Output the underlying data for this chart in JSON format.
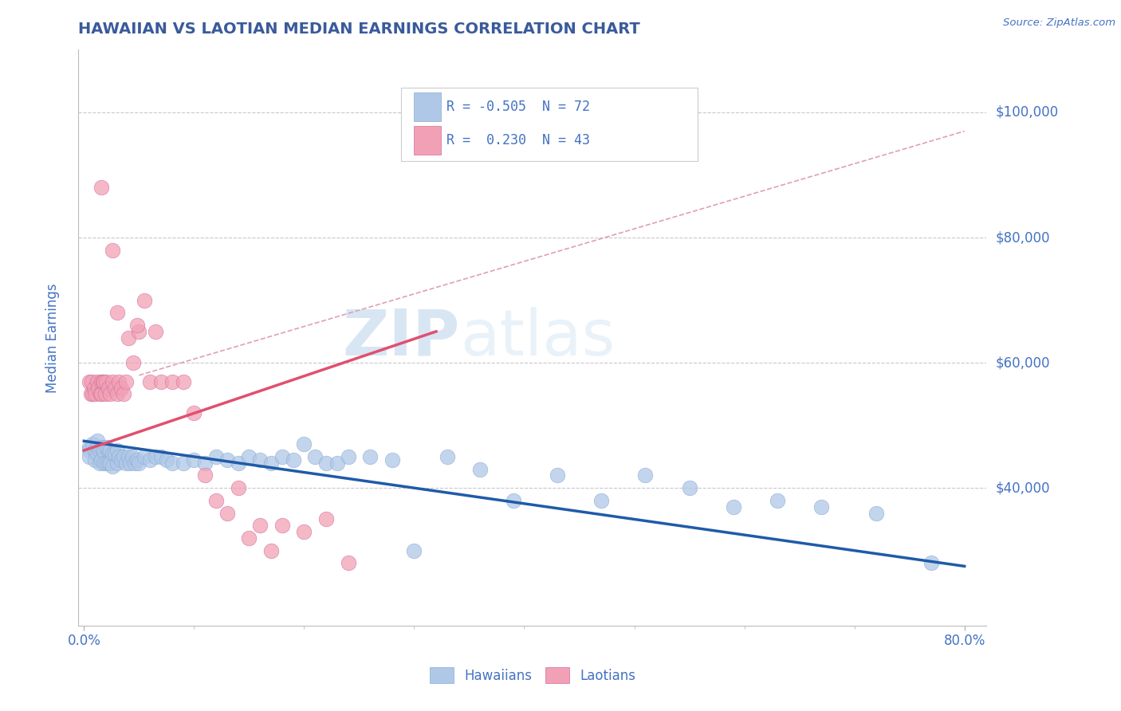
{
  "title": "HAWAIIAN VS LAOTIAN MEDIAN EARNINGS CORRELATION CHART",
  "source": "Source: ZipAtlas.com",
  "ylabel": "Median Earnings",
  "xlim": [
    -0.005,
    0.82
  ],
  "ylim": [
    18000,
    110000
  ],
  "title_color": "#3A5A9B",
  "axis_color": "#4472C4",
  "background_color": "#FFFFFF",
  "grid_color": "#C8C8D0",
  "watermark_zip": "ZIP",
  "watermark_atlas": "atlas",
  "legend_text1": "R = -0.505  N = 72",
  "legend_text2": "R =  0.230  N = 43",
  "legend_label1": "Hawaiians",
  "legend_label2": "Laotians",
  "hawaiian_color": "#AFC8E8",
  "laotian_color": "#F2A0B5",
  "hawaiian_line_color": "#1F5BA8",
  "laotian_line_color": "#E05070",
  "dashed_line_color": "#E0A0B0",
  "hawaiians_x": [
    0.005,
    0.005,
    0.005,
    0.008,
    0.01,
    0.01,
    0.012,
    0.012,
    0.014,
    0.014,
    0.016,
    0.016,
    0.018,
    0.018,
    0.02,
    0.02,
    0.022,
    0.022,
    0.024,
    0.024,
    0.026,
    0.026,
    0.028,
    0.03,
    0.03,
    0.032,
    0.034,
    0.036,
    0.038,
    0.04,
    0.042,
    0.044,
    0.046,
    0.048,
    0.05,
    0.055,
    0.06,
    0.065,
    0.07,
    0.075,
    0.08,
    0.09,
    0.1,
    0.11,
    0.12,
    0.13,
    0.14,
    0.15,
    0.16,
    0.17,
    0.18,
    0.19,
    0.2,
    0.21,
    0.22,
    0.23,
    0.24,
    0.26,
    0.28,
    0.3,
    0.33,
    0.36,
    0.39,
    0.43,
    0.47,
    0.51,
    0.55,
    0.59,
    0.63,
    0.67,
    0.72,
    0.77
  ],
  "hawaiians_y": [
    46500,
    46000,
    45000,
    47000,
    46000,
    44500,
    47500,
    45500,
    46000,
    44000,
    46500,
    44500,
    46000,
    44000,
    46500,
    44000,
    46000,
    44000,
    46000,
    44000,
    45500,
    43500,
    45500,
    46000,
    44000,
    45000,
    44500,
    45000,
    44000,
    45000,
    44000,
    45000,
    44000,
    44500,
    44000,
    45000,
    44500,
    45000,
    45000,
    44500,
    44000,
    44000,
    44500,
    44000,
    45000,
    44500,
    44000,
    45000,
    44500,
    44000,
    45000,
    44500,
    47000,
    45000,
    44000,
    44000,
    45000,
    45000,
    44500,
    30000,
    45000,
    43000,
    38000,
    42000,
    38000,
    42000,
    40000,
    37000,
    38000,
    37000,
    36000,
    28000
  ],
  "laotians_x": [
    0.005,
    0.006,
    0.007,
    0.008,
    0.009,
    0.01,
    0.012,
    0.013,
    0.015,
    0.016,
    0.016,
    0.017,
    0.018,
    0.019,
    0.02,
    0.022,
    0.024,
    0.026,
    0.028,
    0.03,
    0.032,
    0.034,
    0.036,
    0.038,
    0.04,
    0.045,
    0.05,
    0.06,
    0.07,
    0.08,
    0.09,
    0.1,
    0.11,
    0.12,
    0.13,
    0.14,
    0.15,
    0.16,
    0.17,
    0.18,
    0.2,
    0.22,
    0.24
  ],
  "laotians_y": [
    57000,
    55000,
    57000,
    55000,
    56000,
    55000,
    57000,
    56000,
    55000,
    57000,
    55000,
    57000,
    57000,
    55000,
    57000,
    56000,
    55000,
    57000,
    56000,
    55000,
    57000,
    56000,
    55000,
    57000,
    64000,
    60000,
    65000,
    57000,
    57000,
    57000,
    57000,
    52000,
    42000,
    38000,
    36000,
    40000,
    32000,
    34000,
    30000,
    34000,
    33000,
    35000,
    28000
  ],
  "laotian_outliers_x": [
    0.016,
    0.026,
    0.048,
    0.03,
    0.055,
    0.065
  ],
  "laotian_outliers_y": [
    88000,
    78000,
    66000,
    68000,
    70000,
    65000
  ],
  "hawaii_trend_x": [
    0.0,
    0.8
  ],
  "hawaii_trend_y": [
    47500,
    27500
  ],
  "laotian_trend_x": [
    0.0,
    0.32
  ],
  "laotian_trend_y": [
    46000,
    65000
  ],
  "dashed_trend_x": [
    0.05,
    0.8
  ],
  "dashed_trend_y": [
    58000,
    97000
  ]
}
